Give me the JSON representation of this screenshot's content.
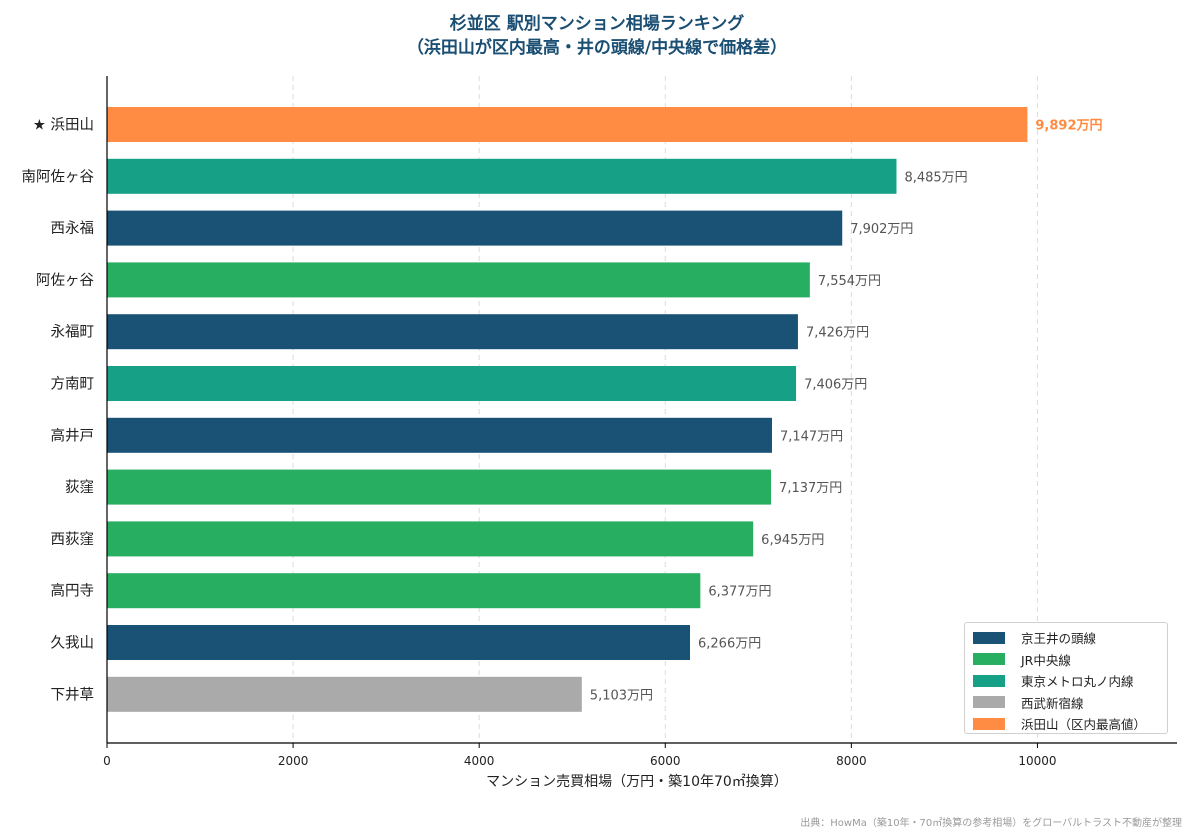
{
  "title_line1": "杉並区 駅別マンション相場ランキング",
  "title_line2": "（浜田山が区内最高・井の頭線/中央線で価格差）",
  "source": "出典：HowMa（築10年・70㎡換算の参考相場）をグローバルトラスト不動産が整理",
  "colors": {
    "keio": "#1a5276",
    "jr": "#27ae60",
    "metro": "#16a085",
    "seibu": "#aaaaaa",
    "highlight": "#ff8c42"
  },
  "legend": [
    {
      "label": "京王井の頭線",
      "color": "#1a5276"
    },
    {
      "label": "JR中央線",
      "color": "#27ae60"
    },
    {
      "label": "東京メトロ丸ノ内線",
      "color": "#16a085"
    },
    {
      "label": "西武新宿線",
      "color": "#aaaaaa"
    },
    {
      "label": "浜田山（区内最高値）",
      "color": "#ff8c42"
    }
  ],
  "chart_data": {
    "type": "bar",
    "orientation": "horizontal",
    "xlabel": "マンション売買相場（万円・築10年70㎡換算）",
    "ylabel": "",
    "xlim": [
      0,
      11500
    ],
    "xticks": [
      0,
      2000,
      4000,
      6000,
      8000,
      10000
    ],
    "grid": "x-dashed",
    "legend_position": "bottom-right",
    "categories": [
      "★ 浜田山",
      "南阿佐ヶ谷",
      "西永福",
      "阿佐ヶ谷",
      "永福町",
      "方南町",
      "高井戸",
      "荻窪",
      "西荻窪",
      "高円寺",
      "久我山",
      "下井草"
    ],
    "values": [
      9892,
      8485,
      7902,
      7554,
      7426,
      7406,
      7147,
      7137,
      6945,
      6377,
      6266,
      5103
    ],
    "value_labels": [
      "9,892万円",
      "8,485万円",
      "7,902万円",
      "7,554万円",
      "7,426万円",
      "7,406万円",
      "7,147万円",
      "7,137万円",
      "6,945万円",
      "6,377万円",
      "6,266万円",
      "5,103万円"
    ],
    "lines": [
      "highlight",
      "metro",
      "keio",
      "jr",
      "keio",
      "metro",
      "keio",
      "jr",
      "jr",
      "jr",
      "keio",
      "seibu"
    ]
  }
}
